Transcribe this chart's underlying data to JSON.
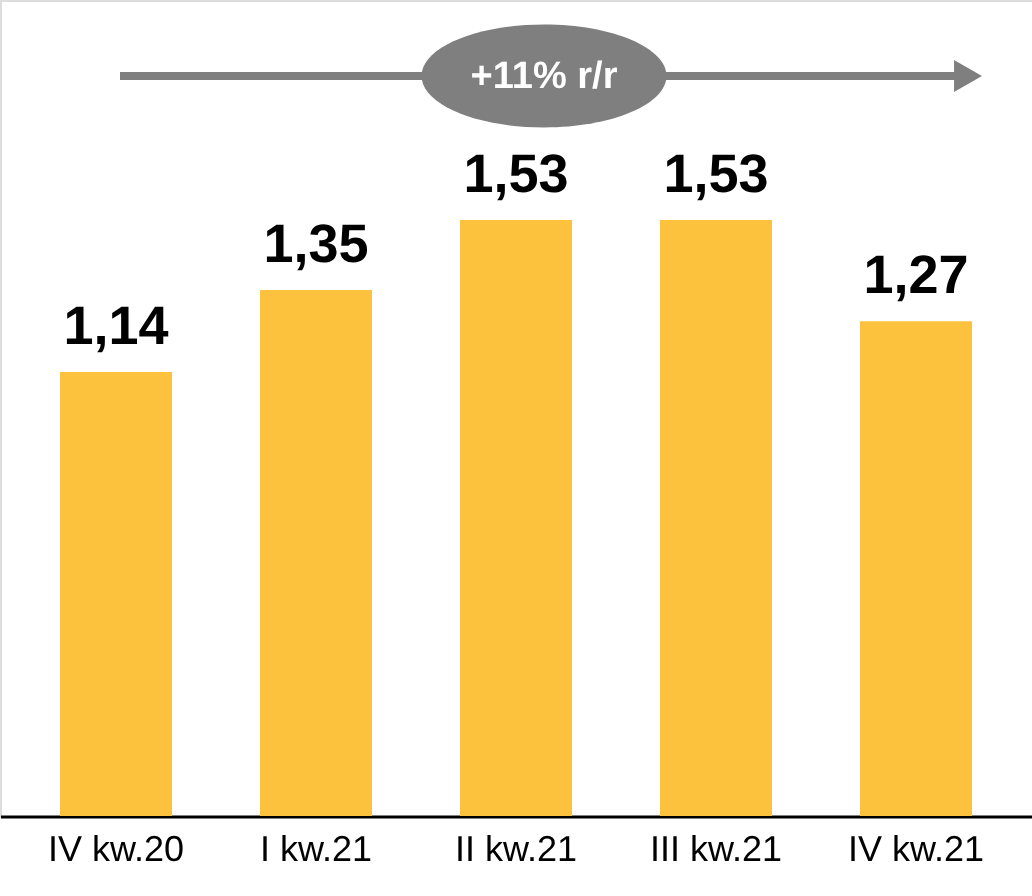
{
  "chart_data": {
    "type": "bar",
    "categories": [
      "IV kw.20",
      "I kw.21",
      "II kw.21",
      "III kw.21",
      "IV kw.21"
    ],
    "values": [
      1.14,
      1.35,
      1.53,
      1.53,
      1.27
    ],
    "value_labels": [
      "1,14",
      "1,35",
      "1,53",
      "1,53",
      "1,27"
    ],
    "color": "#fcc23d",
    "annotations": [
      "+11% r/r"
    ],
    "grid": false
  }
}
